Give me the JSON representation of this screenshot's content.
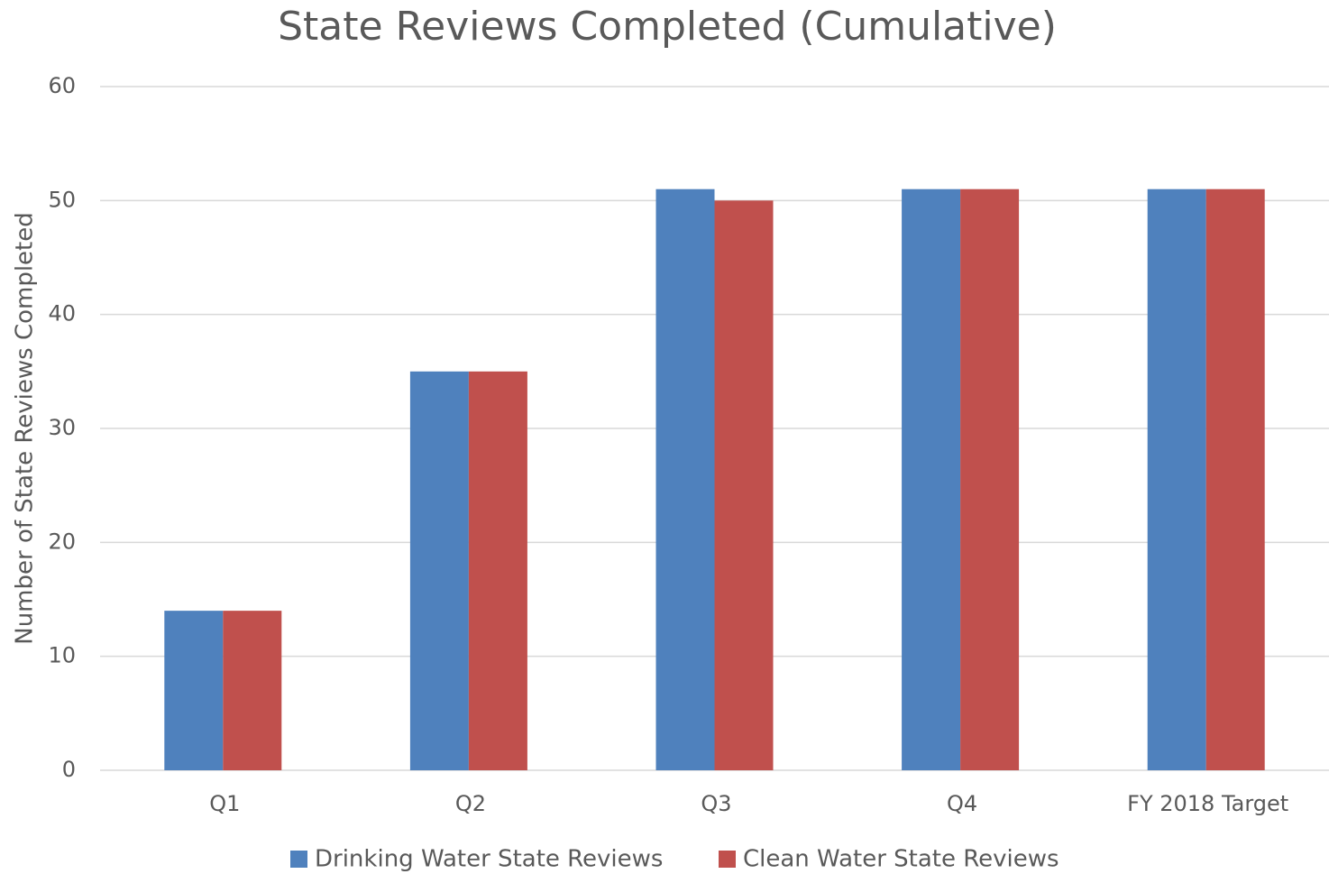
{
  "chart_data": {
    "type": "bar",
    "title": "State Reviews Completed (Cumulative)",
    "y_label": "Number of State Reviews Completed",
    "categories": [
      "Q1",
      "Q2",
      "Q3",
      "Q4",
      "FY 2018 Target"
    ],
    "series": [
      {
        "name": "Drinking Water State Reviews",
        "color": "#4f81bd",
        "values": [
          14,
          35,
          51,
          51,
          51
        ]
      },
      {
        "name": "Clean Water State Reviews",
        "color": "#c0504d",
        "values": [
          14,
          35,
          50,
          51,
          51
        ]
      }
    ],
    "ylim": [
      0,
      60
    ],
    "yticks": [
      0,
      10,
      20,
      30,
      40,
      50,
      60
    ],
    "grid": true,
    "legend": "bottom"
  }
}
